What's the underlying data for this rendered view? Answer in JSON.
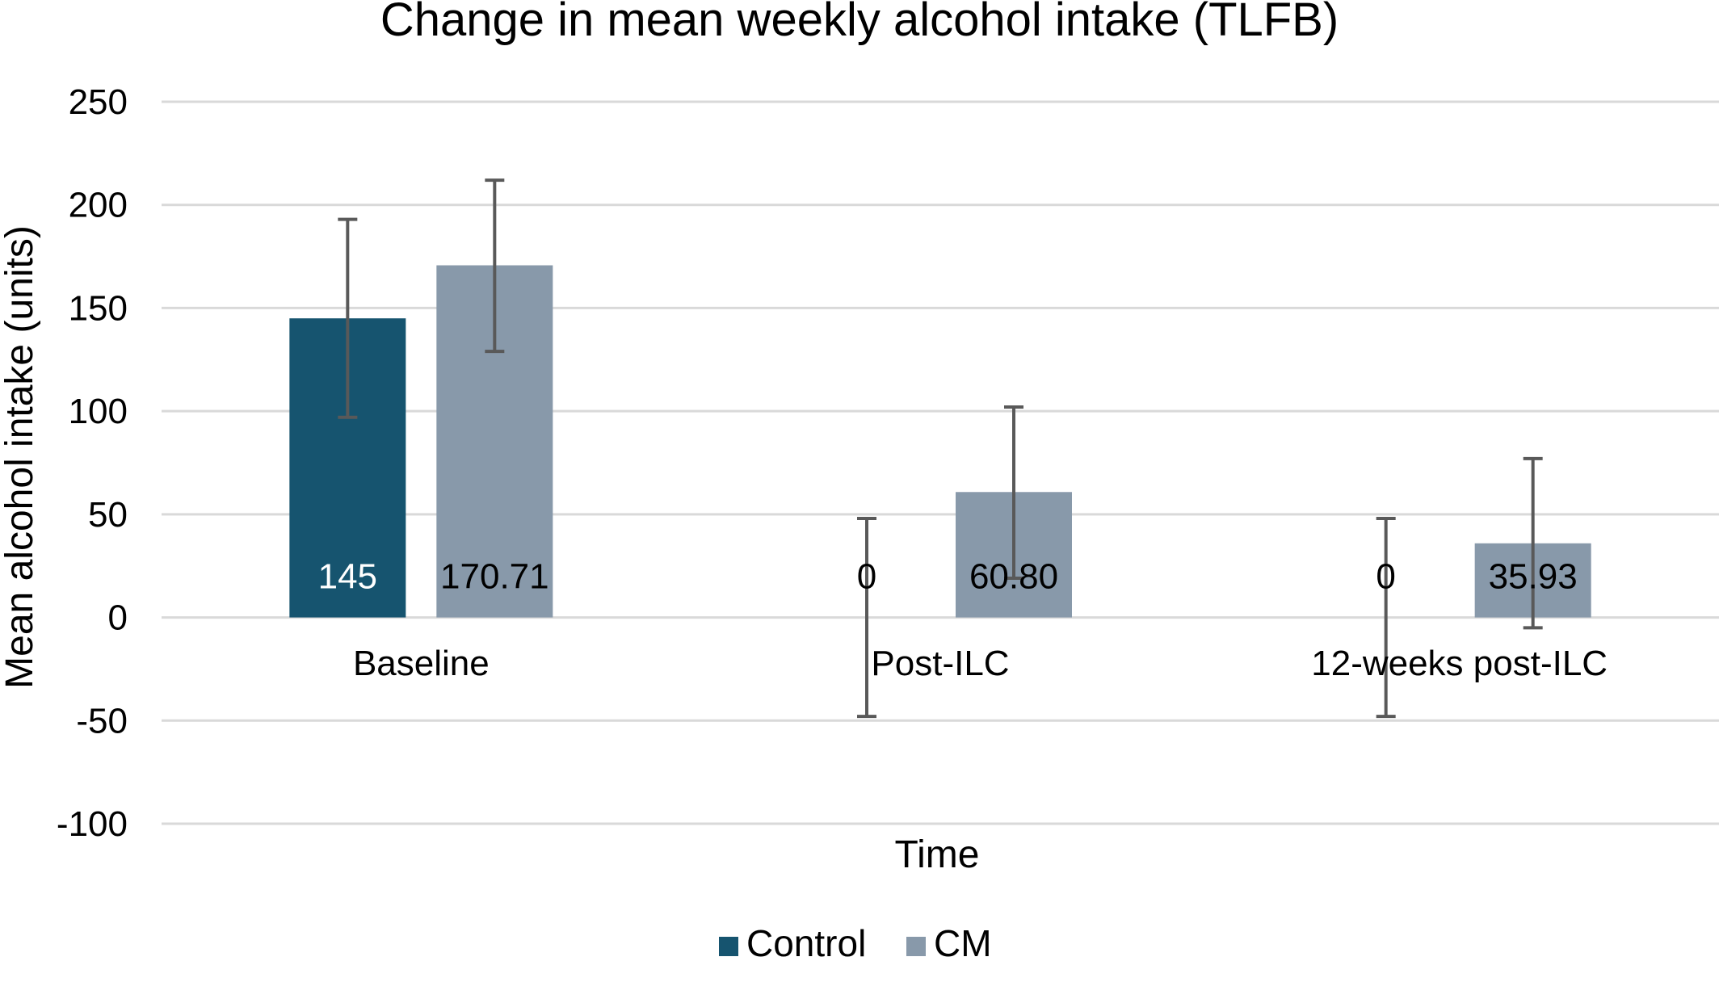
{
  "chart_data": {
    "type": "bar",
    "title": "Change in mean weekly alcohol intake (TLFB)",
    "xlabel": "Time",
    "ylabel": "Mean alcohol intake (units)",
    "ylim": [
      -100,
      250
    ],
    "yticks": [
      250,
      200,
      150,
      100,
      50,
      0,
      -50,
      -100
    ],
    "ytick_labels": [
      "250",
      "200",
      "150",
      "100",
      "50",
      "0",
      "-50",
      "-100"
    ],
    "grid": true,
    "legend_position": "bottom",
    "categories": [
      "Baseline",
      "Post-ILC",
      "12-weeks post-ILC"
    ],
    "series": [
      {
        "name": "Control",
        "color": "#16546F",
        "values": [
          145,
          0,
          0
        ],
        "value_labels": [
          "145",
          "0",
          "0"
        ],
        "error_low": [
          97,
          -48,
          -48
        ],
        "error_high": [
          193,
          48,
          48
        ]
      },
      {
        "name": "CM",
        "color": "#8899AA",
        "values": [
          170.71,
          60.8,
          35.93
        ],
        "value_labels": [
          "170.71",
          "60.80",
          "35.93"
        ],
        "error_low": [
          129,
          19,
          -5
        ],
        "error_high": [
          212,
          102,
          77
        ]
      }
    ],
    "colors": {
      "gridline": "#D9D9D9",
      "error_bar": "#595959",
      "label_on_dark": "#FFFFFF",
      "label_on_light": "#000000"
    }
  }
}
